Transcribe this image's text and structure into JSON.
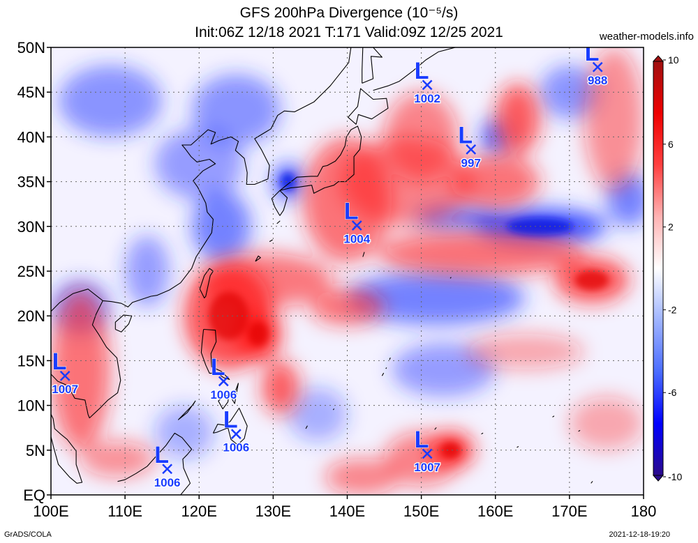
{
  "title": "GFS 200hPa Divergence (10⁻⁵/s)",
  "subtitle": "Init:06Z 12/18 2021 T:171 Valid:09Z 12/25 2021",
  "site": "weather-models.info",
  "footer_left": "GrADS/COLA",
  "footer_right": "2021-12-18-19:20",
  "map": {
    "lon_range": [
      100,
      180
    ],
    "lat_range": [
      0,
      50
    ],
    "lon_ticks": [
      "100E",
      "110E",
      "120E",
      "130E",
      "140E",
      "150E",
      "160E",
      "170E",
      "180"
    ],
    "lat_ticks": [
      "EQ",
      "5N",
      "10N",
      "15N",
      "20N",
      "25N",
      "30N",
      "35N",
      "40N",
      "45N",
      "50N"
    ],
    "grid": true
  },
  "colorbar": {
    "range": [
      -10,
      10
    ],
    "labels": [
      "10",
      "6",
      "2",
      "-2",
      "-6",
      "-10"
    ],
    "colors": [
      "#2a0a8c",
      "#0000ff",
      "#4a6cff",
      "#9fb4ff",
      "#ffffff",
      "#ffb3b3",
      "#ff4040",
      "#ee0000",
      "#a01010"
    ]
  },
  "lows": [
    {
      "label": "L",
      "value": "988",
      "lon": 173.8,
      "lat": 47.8
    },
    {
      "label": "L",
      "value": "1002",
      "lon": 150.8,
      "lat": 45.8
    },
    {
      "label": "L",
      "value": "997",
      "lon": 156.7,
      "lat": 38.6
    },
    {
      "label": "L",
      "value": "1004",
      "lon": 141.3,
      "lat": 30.1
    },
    {
      "label": "L",
      "value": "1007",
      "lon": 101.9,
      "lat": 13.3
    },
    {
      "label": "L",
      "value": "1006",
      "lon": 123.3,
      "lat": 12.7
    },
    {
      "label": "L",
      "value": "1006",
      "lon": 125.0,
      "lat": 6.8
    },
    {
      "label": "L",
      "value": "1006",
      "lon": 115.7,
      "lat": 2.9
    },
    {
      "label": "L",
      "value": "1007",
      "lon": 150.8,
      "lat": 4.6
    }
  ],
  "features": {
    "red": [
      {
        "lon": 104,
        "lat": 14,
        "rx": 4,
        "ry": 9,
        "a": 0.6
      },
      {
        "lon": 124,
        "lat": 20,
        "rx": 6,
        "ry": 6,
        "a": 0.75
      },
      {
        "lon": 128,
        "lat": 18,
        "rx": 3,
        "ry": 3,
        "a": 0.9
      },
      {
        "lon": 131,
        "lat": 12,
        "rx": 2.5,
        "ry": 3,
        "a": 0.7
      },
      {
        "lon": 129,
        "lat": 24,
        "rx": 9,
        "ry": 3,
        "a": 0.55
      },
      {
        "lon": 140,
        "lat": 33,
        "rx": 6,
        "ry": 7,
        "a": 0.6
      },
      {
        "lon": 148,
        "lat": 35,
        "rx": 9,
        "ry": 5,
        "a": 0.5
      },
      {
        "lon": 150,
        "lat": 40,
        "rx": 5,
        "ry": 5,
        "a": 0.5
      },
      {
        "lon": 163,
        "lat": 42,
        "rx": 3,
        "ry": 4,
        "a": 0.7
      },
      {
        "lon": 160,
        "lat": 35,
        "rx": 6,
        "ry": 3,
        "a": 0.6
      },
      {
        "lon": 158,
        "lat": 27,
        "rx": 14,
        "ry": 2.5,
        "a": 0.6
      },
      {
        "lon": 173,
        "lat": 24,
        "rx": 5,
        "ry": 2.5,
        "a": 0.75
      },
      {
        "lon": 176,
        "lat": 42,
        "rx": 4,
        "ry": 8,
        "a": 0.45
      },
      {
        "lon": 154,
        "lat": 5,
        "rx": 3,
        "ry": 2,
        "a": 0.9
      },
      {
        "lon": 150,
        "lat": 4,
        "rx": 5,
        "ry": 3,
        "a": 0.5
      },
      {
        "lon": 142,
        "lat": 2,
        "rx": 5,
        "ry": 2,
        "a": 0.5
      },
      {
        "lon": 140,
        "lat": 21,
        "rx": 5,
        "ry": 2,
        "a": 0.6
      },
      {
        "lon": 109,
        "lat": 4,
        "rx": 5,
        "ry": 2,
        "a": 0.45
      },
      {
        "lon": 164,
        "lat": 16,
        "rx": 8,
        "ry": 2,
        "a": 0.35
      },
      {
        "lon": 175,
        "lat": 8,
        "rx": 5,
        "ry": 3,
        "a": 0.35
      }
    ],
    "blue": [
      {
        "lon": 123,
        "lat": 30,
        "rx": 4,
        "ry": 4,
        "a": 0.6
      },
      {
        "lon": 132,
        "lat": 35,
        "rx": 2,
        "ry": 2,
        "a": 0.85
      },
      {
        "lon": 120,
        "lat": 37,
        "rx": 6,
        "ry": 4,
        "a": 0.45
      },
      {
        "lon": 125,
        "lat": 43,
        "rx": 6,
        "ry": 4,
        "a": 0.5
      },
      {
        "lon": 108,
        "lat": 44,
        "rx": 7,
        "ry": 4,
        "a": 0.5
      },
      {
        "lon": 166,
        "lat": 30,
        "rx": 9,
        "ry": 2,
        "a": 0.85
      },
      {
        "lon": 155,
        "lat": 31,
        "rx": 6,
        "ry": 1.5,
        "a": 0.6
      },
      {
        "lon": 152,
        "lat": 22,
        "rx": 12,
        "ry": 3,
        "a": 0.6
      },
      {
        "lon": 160,
        "lat": 40,
        "rx": 2,
        "ry": 2,
        "a": 0.7
      },
      {
        "lon": 153,
        "lat": 14,
        "rx": 7,
        "ry": 3,
        "a": 0.45
      },
      {
        "lon": 170,
        "lat": 45,
        "rx": 4,
        "ry": 3,
        "a": 0.5
      },
      {
        "lon": 104,
        "lat": 21,
        "rx": 4,
        "ry": 3,
        "a": 0.5
      },
      {
        "lon": 113,
        "lat": 25,
        "rx": 3,
        "ry": 4,
        "a": 0.45
      },
      {
        "lon": 178,
        "lat": 33,
        "rx": 3,
        "ry": 3,
        "a": 0.6
      },
      {
        "lon": 118,
        "lat": 7,
        "rx": 4,
        "ry": 3,
        "a": 0.35
      },
      {
        "lon": 136,
        "lat": 9,
        "rx": 4,
        "ry": 3,
        "a": 0.35
      }
    ]
  },
  "coastlines": [
    [
      [
        100,
        20.5
      ],
      [
        101.2,
        21.5
      ],
      [
        103,
        22.5
      ],
      [
        105,
        23
      ],
      [
        107,
        21.7
      ],
      [
        108.2,
        21.6
      ],
      [
        109.5,
        21.4
      ],
      [
        110.4,
        21
      ],
      [
        111,
        21.5
      ],
      [
        113.5,
        22.2
      ],
      [
        114.3,
        22.3
      ],
      [
        116,
        22.9
      ],
      [
        117.5,
        23.7
      ],
      [
        119,
        25.3
      ],
      [
        119.6,
        26.6
      ],
      [
        120.3,
        27.5
      ],
      [
        121.7,
        29.3
      ],
      [
        121.9,
        30.8
      ],
      [
        121.1,
        31.6
      ],
      [
        120.9,
        32.6
      ],
      [
        119.8,
        34.4
      ],
      [
        119.2,
        35.1
      ],
      [
        120.5,
        36.2
      ],
      [
        122.2,
        37
      ],
      [
        121.4,
        37.5
      ],
      [
        119.7,
        37.2
      ],
      [
        118.9,
        37.8
      ],
      [
        118.2,
        38.6
      ],
      [
        117.7,
        39.1
      ],
      [
        118.9,
        39.1
      ],
      [
        121.2,
        40.8
      ],
      [
        122.2,
        40.5
      ],
      [
        121.6,
        39.2
      ],
      [
        122.7,
        39.6
      ],
      [
        124.3,
        40
      ],
      [
        125.3,
        39.5
      ],
      [
        124.9,
        38.5
      ],
      [
        126.1,
        37.6
      ],
      [
        126.5,
        36
      ],
      [
        126.4,
        34.7
      ],
      [
        127.5,
        34.7
      ],
      [
        129.3,
        35.3
      ],
      [
        129.5,
        36.8
      ],
      [
        128.4,
        38.6
      ],
      [
        127.5,
        39.8
      ],
      [
        129.7,
        40.9
      ],
      [
        130.6,
        42.4
      ],
      [
        131.5,
        42.9
      ],
      [
        132.9,
        42.8
      ],
      [
        135.5,
        43.9
      ],
      [
        137.7,
        45.7
      ],
      [
        140.2,
        48.3
      ],
      [
        140.5,
        50
      ]
    ],
    [
      [
        130.9,
        31.2
      ],
      [
        131.4,
        31.8
      ],
      [
        131.9,
        33.2
      ],
      [
        130.9,
        34
      ],
      [
        132.3,
        34.3
      ],
      [
        133.5,
        34.4
      ],
      [
        135.2,
        34.6
      ],
      [
        135.5,
        33.7
      ],
      [
        136.9,
        34.3
      ],
      [
        138.2,
        34.6
      ],
      [
        138.8,
        35
      ],
      [
        139.8,
        35
      ],
      [
        140.9,
        35.8
      ],
      [
        140.9,
        37.8
      ],
      [
        141.7,
        38.6
      ],
      [
        141.9,
        40
      ],
      [
        141.4,
        41.2
      ],
      [
        140.5,
        40.8
      ],
      [
        139.9,
        40
      ],
      [
        139.7,
        39
      ],
      [
        139.1,
        38
      ],
      [
        138.4,
        37.3
      ],
      [
        137.3,
        36.8
      ],
      [
        136.7,
        36.7
      ],
      [
        136,
        35.6
      ],
      [
        135.1,
        35.6
      ],
      [
        133.2,
        35.5
      ],
      [
        131.8,
        34.6
      ],
      [
        130.9,
        34
      ],
      [
        129.8,
        33.1
      ],
      [
        130.2,
        32.2
      ],
      [
        130.9,
        31.2
      ]
    ],
    [
      [
        141.2,
        41.4
      ],
      [
        141.5,
        42.5
      ],
      [
        143.3,
        42
      ],
      [
        145.5,
        43.2
      ],
      [
        145.3,
        44.3
      ],
      [
        143.5,
        44.2
      ],
      [
        141.8,
        45.4
      ],
      [
        141.4,
        43.4
      ],
      [
        140.1,
        42.2
      ],
      [
        141.2,
        41.4
      ]
    ],
    [
      [
        142,
        46
      ],
      [
        143.5,
        46.5
      ],
      [
        143.2,
        49
      ],
      [
        144.7,
        48.9
      ],
      [
        143.5,
        50
      ],
      [
        142.1,
        50
      ],
      [
        142,
        47.5
      ],
      [
        142,
        46
      ]
    ],
    [
      [
        143.5,
        45.2
      ],
      [
        145.5,
        45.7
      ],
      [
        147,
        46.2
      ],
      [
        148.9,
        47.4
      ],
      [
        150.6,
        48.6
      ],
      [
        152.3,
        49.5
      ],
      [
        154.6,
        50
      ]
    ],
    [
      [
        120.1,
        23
      ],
      [
        120.7,
        22
      ],
      [
        120.9,
        22.2
      ],
      [
        121.5,
        24.5
      ],
      [
        121.9,
        25
      ],
      [
        121.4,
        25.3
      ],
      [
        120.7,
        24.5
      ],
      [
        120.1,
        23
      ]
    ],
    [
      [
        108.7,
        18.5
      ],
      [
        109.5,
        18.2
      ],
      [
        110.5,
        19.1
      ],
      [
        110.9,
        20
      ],
      [
        109.8,
        20.1
      ],
      [
        108.7,
        19.3
      ],
      [
        108.7,
        18.5
      ]
    ],
    [
      [
        120.6,
        18.5
      ],
      [
        122.2,
        18.4
      ],
      [
        122.3,
        17.1
      ],
      [
        121.6,
        15.8
      ],
      [
        121.7,
        14.3
      ],
      [
        123,
        13.8
      ],
      [
        124.1,
        12.9
      ],
      [
        123.3,
        13.1
      ],
      [
        122.5,
        13.6
      ],
      [
        121.4,
        13.6
      ],
      [
        120.9,
        14.5
      ],
      [
        120.3,
        15.9
      ],
      [
        120.4,
        17
      ],
      [
        120.6,
        18.5
      ]
    ],
    [
      [
        125.3,
        12.5
      ],
      [
        124.8,
        10.2
      ],
      [
        124.3,
        10.9
      ],
      [
        124.9,
        11.6
      ],
      [
        125.3,
        12.5
      ]
    ],
    [
      [
        123.2,
        10.9
      ],
      [
        124,
        11.2
      ],
      [
        123.9,
        10.4
      ],
      [
        123.2,
        9.6
      ],
      [
        122.6,
        10.5
      ],
      [
        123.2,
        10.9
      ]
    ],
    [
      [
        121.9,
        6.9
      ],
      [
        122.5,
        7.9
      ],
      [
        123.4,
        7.8
      ],
      [
        124.2,
        8.2
      ],
      [
        125.4,
        9.7
      ],
      [
        126.5,
        7.7
      ],
      [
        126.1,
        6.3
      ],
      [
        125.2,
        5.6
      ],
      [
        124.3,
        6.2
      ],
      [
        123.9,
        7.5
      ],
      [
        122.4,
        7
      ],
      [
        121.9,
        6.9
      ]
    ],
    [
      [
        118.4,
        9.2
      ],
      [
        119.5,
        10.5
      ],
      [
        119.2,
        10.1
      ],
      [
        117.2,
        8.4
      ],
      [
        118.4,
        9.2
      ]
    ],
    [
      [
        109,
        1.5
      ],
      [
        110,
        1.7
      ],
      [
        111.5,
        2.4
      ],
      [
        113,
        3.2
      ],
      [
        114.5,
        4.6
      ],
      [
        115.5,
        5.5
      ],
      [
        116.7,
        6.9
      ],
      [
        117.7,
        6.4
      ],
      [
        119,
        5.1
      ],
      [
        118.4,
        4.5
      ],
      [
        117.8,
        4
      ],
      [
        117.9,
        3
      ],
      [
        118.8,
        1.3
      ],
      [
        118.3,
        0.8
      ],
      [
        117.5,
        0
      ]
    ],
    [
      [
        100,
        13.5
      ],
      [
        100.9,
        12.7
      ],
      [
        102.3,
        12.2
      ],
      [
        103.2,
        10.8
      ],
      [
        104.6,
        10.6
      ],
      [
        105,
        9
      ],
      [
        105.2,
        8.6
      ],
      [
        106.5,
        9.6
      ],
      [
        107.7,
        10.6
      ],
      [
        109,
        11.4
      ],
      [
        109.4,
        12.8
      ],
      [
        108.9,
        15.3
      ],
      [
        107.5,
        16.5
      ],
      [
        106.4,
        18
      ],
      [
        105.6,
        19
      ],
      [
        106.1,
        20.2
      ],
      [
        107,
        21.7
      ]
    ],
    [
      [
        100,
        6.5
      ],
      [
        100.4,
        5.2
      ],
      [
        101,
        3.4
      ],
      [
        102.5,
        2
      ],
      [
        103.5,
        1.3
      ],
      [
        104.2,
        1.4
      ],
      [
        103.4,
        3.4
      ],
      [
        103.4,
        4.9
      ],
      [
        102.2,
        6.2
      ],
      [
        101.3,
        6.8
      ],
      [
        100.5,
        7.4
      ],
      [
        100.3,
        8.5
      ],
      [
        99.9,
        9.2
      ],
      [
        100,
        10.5
      ]
    ],
    [
      [
        127.6,
        26.1
      ],
      [
        128,
        26.7
      ],
      [
        128.3,
        26.5
      ],
      [
        127.6,
        26.1
      ]
    ],
    [
      [
        129.5,
        28.3
      ],
      [
        129.9,
        28.5
      ],
      [
        129.5,
        28.3
      ]
    ],
    [
      [
        130.5,
        30.3
      ],
      [
        130.9,
        30.6
      ],
      [
        130.5,
        30.3
      ]
    ],
    [
      [
        145.7,
        15.1
      ],
      [
        145.8,
        15.3
      ],
      [
        145.7,
        15.1
      ]
    ],
    [
      [
        144.7,
        13.3
      ],
      [
        144.9,
        13.6
      ],
      [
        144.7,
        13.3
      ]
    ],
    [
      [
        134.4,
        7.4
      ],
      [
        134.6,
        7.7
      ],
      [
        134.4,
        7.4
      ]
    ],
    [
      [
        138.1,
        9.5
      ],
      [
        138.2,
        9.6
      ],
      [
        138.1,
        9.5
      ]
    ],
    [
      [
        151.8,
        7.3
      ],
      [
        152,
        7.5
      ],
      [
        151.8,
        7.3
      ]
    ],
    [
      [
        158.1,
        6.8
      ],
      [
        158.3,
        6.9
      ],
      [
        158.1,
        6.8
      ]
    ],
    [
      [
        172.9,
        1.3
      ],
      [
        173.1,
        1.5
      ],
      [
        172.9,
        1.3
      ]
    ],
    [
      [
        171.2,
        7.1
      ],
      [
        171.4,
        7.2
      ],
      [
        171.2,
        7.1
      ]
    ],
    [
      [
        167.7,
        8.7
      ],
      [
        167.9,
        8.8
      ],
      [
        167.7,
        8.7
      ]
    ],
    [
      [
        162.9,
        5.3
      ],
      [
        163.1,
        5.4
      ],
      [
        162.9,
        5.3
      ]
    ],
    [
      [
        142.1,
        26.6
      ],
      [
        142.3,
        27.1
      ],
      [
        142.1,
        26.6
      ]
    ],
    [
      [
        145.2,
        14.1
      ],
      [
        145.3,
        14.2
      ],
      [
        145.2,
        14.1
      ]
    ],
    [
      [
        153.9,
        24.2
      ],
      [
        154,
        24.3
      ],
      [
        153.9,
        24.2
      ]
    ]
  ]
}
